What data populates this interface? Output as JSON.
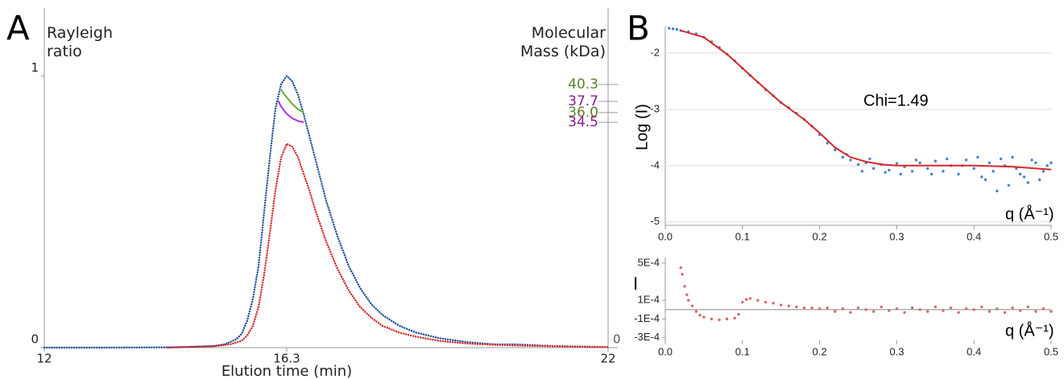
{
  "chart_data": [
    {
      "type": "line",
      "panel_label": "A",
      "ylabel": "Rayleigh ratio",
      "y2label": "Molecular Mass (kDa)",
      "xlabel": "Elution time (min)",
      "xlim": [
        12,
        22
      ],
      "xticks": [
        12,
        16.3,
        22
      ],
      "ylim": [
        0,
        1.25
      ],
      "yticks": [
        0,
        1
      ],
      "y2lim": [
        0,
        52
      ],
      "y2ticks": [
        0,
        34.5,
        {
          "value": 36,
          "label": "36.0"
        },
        37.7,
        40.3
      ],
      "y2tick_colors": [
        "#555555",
        "#8b1a8b",
        "#5a7f2a",
        "#8b1a8b",
        "#5a7f2a"
      ],
      "series": [
        {
          "color": "#1d4f96",
          "style": "dots",
          "x": [
            12,
            13,
            14,
            14.5,
            15,
            15.2,
            15.4,
            15.5,
            15.6,
            15.7,
            15.8,
            15.9,
            16.0,
            16.1,
            16.2,
            16.3,
            16.4,
            16.5,
            16.6,
            16.7,
            16.8,
            16.9,
            17.0,
            17.2,
            17.4,
            17.6,
            17.8,
            18.0,
            18.3,
            18.6,
            19.0,
            19.5,
            20.0,
            20.3,
            20.6,
            21,
            21.5,
            22
          ],
          "values": [
            0,
            0,
            0.001,
            0.002,
            0.006,
            0.012,
            0.03,
            0.05,
            0.1,
            0.18,
            0.3,
            0.5,
            0.7,
            0.88,
            0.97,
            1,
            0.98,
            0.93,
            0.86,
            0.78,
            0.7,
            0.62,
            0.54,
            0.41,
            0.3,
            0.22,
            0.16,
            0.12,
            0.08,
            0.055,
            0.035,
            0.02,
            0.012,
            0.012,
            0.01,
            0.006,
            0.004,
            0.002
          ]
        },
        {
          "color": "#d62728",
          "style": "dots",
          "x": [
            14.2,
            14.5,
            15,
            15.3,
            15.5,
            15.6,
            15.7,
            15.8,
            15.9,
            16.0,
            16.1,
            16.2,
            16.3,
            16.4,
            16.5,
            16.6,
            16.7,
            16.8,
            16.9,
            17.0,
            17.2,
            17.4,
            17.6,
            17.8,
            18.0,
            18.3,
            18.6,
            19.0,
            19.5,
            20.0,
            20.5,
            21,
            21.5,
            22
          ],
          "values": [
            0,
            0.002,
            0.005,
            0.012,
            0.025,
            0.045,
            0.08,
            0.15,
            0.27,
            0.42,
            0.58,
            0.7,
            0.75,
            0.74,
            0.7,
            0.64,
            0.58,
            0.51,
            0.45,
            0.39,
            0.29,
            0.21,
            0.15,
            0.11,
            0.08,
            0.055,
            0.04,
            0.025,
            0.015,
            0.01,
            0.007,
            0.005,
            0.003,
            0.002
          ]
        },
        {
          "color": "#6aaa2a",
          "style": "line",
          "axis": "y2",
          "x": [
            16.2,
            16.3,
            16.4,
            16.5,
            16.6
          ],
          "values": [
            39.5,
            38.3,
            37.3,
            36.5,
            36.0
          ]
        },
        {
          "color": "#a633e6",
          "style": "line",
          "axis": "y2",
          "x": [
            16.15,
            16.2,
            16.3,
            16.4,
            16.5,
            16.6
          ],
          "values": [
            37.8,
            36.9,
            35.8,
            35.1,
            34.7,
            34.5
          ]
        }
      ]
    },
    {
      "type": "scatter",
      "panel_label": "B",
      "ylabel": "Log (I)",
      "xlabel": "q (Å⁻¹)",
      "annotation": "Chi=1.49",
      "grid": true,
      "xlim": [
        0,
        0.5
      ],
      "xticks": [
        {
          "value": 0,
          "label": "0.0"
        },
        0.1,
        0.2,
        0.3,
        0.4,
        0.5
      ],
      "ylim": [
        -5.06,
        -1.53
      ],
      "yticks": [
        -2,
        -3,
        -4,
        -5
      ],
      "series": [
        {
          "color": "#4a80c8",
          "style": "points",
          "x": [
            0.005,
            0.01,
            0.015,
            0.02,
            0.03,
            0.04,
            0.05,
            0.06,
            0.07,
            0.08,
            0.09,
            0.1,
            0.11,
            0.12,
            0.13,
            0.14,
            0.15,
            0.16,
            0.17,
            0.18,
            0.19,
            0.2,
            0.21,
            0.22,
            0.23,
            0.24,
            0.25,
            0.26,
            0.27,
            0.28,
            0.29,
            0.3,
            0.31,
            0.32,
            0.33,
            0.34,
            0.35,
            0.36,
            0.37,
            0.38,
            0.39,
            0.4,
            0.41,
            0.42,
            0.43,
            0.44,
            0.45,
            0.46,
            0.47,
            0.48,
            0.49,
            0.5,
            0.235,
            0.255,
            0.265,
            0.285,
            0.305,
            0.325,
            0.345,
            0.365,
            0.385,
            0.405,
            0.415,
            0.425,
            0.435,
            0.445,
            0.455,
            0.465,
            0.475,
            0.485,
            0.495
          ],
          "values": [
            -1.56,
            -1.57,
            -1.58,
            -1.6,
            -1.62,
            -1.66,
            -1.72,
            -1.8,
            -1.9,
            -2.02,
            -2.14,
            -2.27,
            -2.4,
            -2.52,
            -2.65,
            -2.76,
            -2.88,
            -2.97,
            -3.07,
            -3.18,
            -3.3,
            -3.45,
            -3.6,
            -3.72,
            -3.85,
            -3.9,
            -3.98,
            -3.95,
            -4.05,
            -3.98,
            -4.08,
            -3.96,
            -4.02,
            -4.1,
            -3.95,
            -4.05,
            -3.92,
            -4.1,
            -4.0,
            -4.15,
            -3.9,
            -4.05,
            -4.2,
            -3.95,
            -4.45,
            -4.0,
            -3.85,
            -4.15,
            -4.3,
            -3.95,
            -4.1,
            -3.95,
            -3.8,
            -4.1,
            -3.88,
            -4.12,
            -4.15,
            -3.9,
            -4.15,
            -3.88,
            -4.0,
            -3.85,
            -4.25,
            -4.1,
            -3.88,
            -4.35,
            -4.05,
            -4.2,
            -3.9,
            -4.25,
            -4.0
          ]
        },
        {
          "color": "#d62728",
          "style": "line",
          "x": [
            0.02,
            0.05,
            0.08,
            0.1,
            0.12,
            0.15,
            0.18,
            0.2,
            0.22,
            0.24,
            0.26,
            0.28,
            0.3,
            0.35,
            0.4,
            0.45,
            0.5
          ],
          "values": [
            -1.6,
            -1.72,
            -2.02,
            -2.27,
            -2.52,
            -2.88,
            -3.18,
            -3.42,
            -3.68,
            -3.85,
            -3.93,
            -3.98,
            -4.0,
            -4.0,
            -4.0,
            -4.02,
            -4.07
          ]
        }
      ]
    },
    {
      "type": "scatter",
      "ylabel": "I",
      "xlabel": "q (Å⁻¹)",
      "zero_line": true,
      "xlim": [
        0,
        0.5
      ],
      "xticks": [
        {
          "value": 0,
          "label": "0.0"
        },
        0.1,
        0.2,
        0.3,
        0.4,
        0.5
      ],
      "ylim": [
        -0.00033,
        0.00056
      ],
      "yticks": [
        {
          "value": 0.0005,
          "label": "5E-4"
        },
        {
          "value": 0.0001,
          "label": "1E-4"
        },
        {
          "value": -0.0001,
          "label": "-1E-4"
        },
        {
          "value": -0.0003,
          "label": "-3E-4"
        }
      ],
      "series": [
        {
          "color": "#d46a6a",
          "style": "points",
          "x": [
            0.02,
            0.022,
            0.025,
            0.028,
            0.03,
            0.035,
            0.04,
            0.045,
            0.05,
            0.06,
            0.07,
            0.08,
            0.09,
            0.095,
            0.1,
            0.105,
            0.11,
            0.12,
            0.13,
            0.14,
            0.15,
            0.16,
            0.17,
            0.18,
            0.19,
            0.2,
            0.21,
            0.22,
            0.23,
            0.24,
            0.25,
            0.26,
            0.27,
            0.28,
            0.29,
            0.3,
            0.31,
            0.32,
            0.33,
            0.34,
            0.35,
            0.36,
            0.37,
            0.38,
            0.39,
            0.4,
            0.41,
            0.42,
            0.43,
            0.44,
            0.45,
            0.46,
            0.47,
            0.48,
            0.49,
            0.5
          ],
          "values": [
            0.00045,
            0.00038,
            0.00025,
            0.00016,
            0.0001,
            4e-05,
            -2e-05,
            -6e-05,
            -8e-05,
            -0.0001,
            -0.00011,
            -0.0001,
            -9e-05,
            -5e-05,
            8e-05,
            0.00011,
            0.00012,
            0.0001,
            8e-05,
            7e-05,
            5e-05,
            4e-05,
            3e-05,
            2e-05,
            2e-05,
            1e-05,
            2e-05,
            -2e-05,
            1e-05,
            -3e-05,
            2e-05,
            0,
            -2e-05,
            3e-05,
            -1e-05,
            1e-05,
            -3e-05,
            2e-05,
            0,
            -2e-05,
            3e-05,
            -1e-05,
            2e-05,
            -3e-05,
            1e-05,
            0,
            3e-05,
            -2e-05,
            1e-05,
            -3e-05,
            2e-05,
            -1e-05,
            3e-05,
            -2e-05,
            1e-05,
            -2e-05
          ]
        }
      ]
    }
  ]
}
